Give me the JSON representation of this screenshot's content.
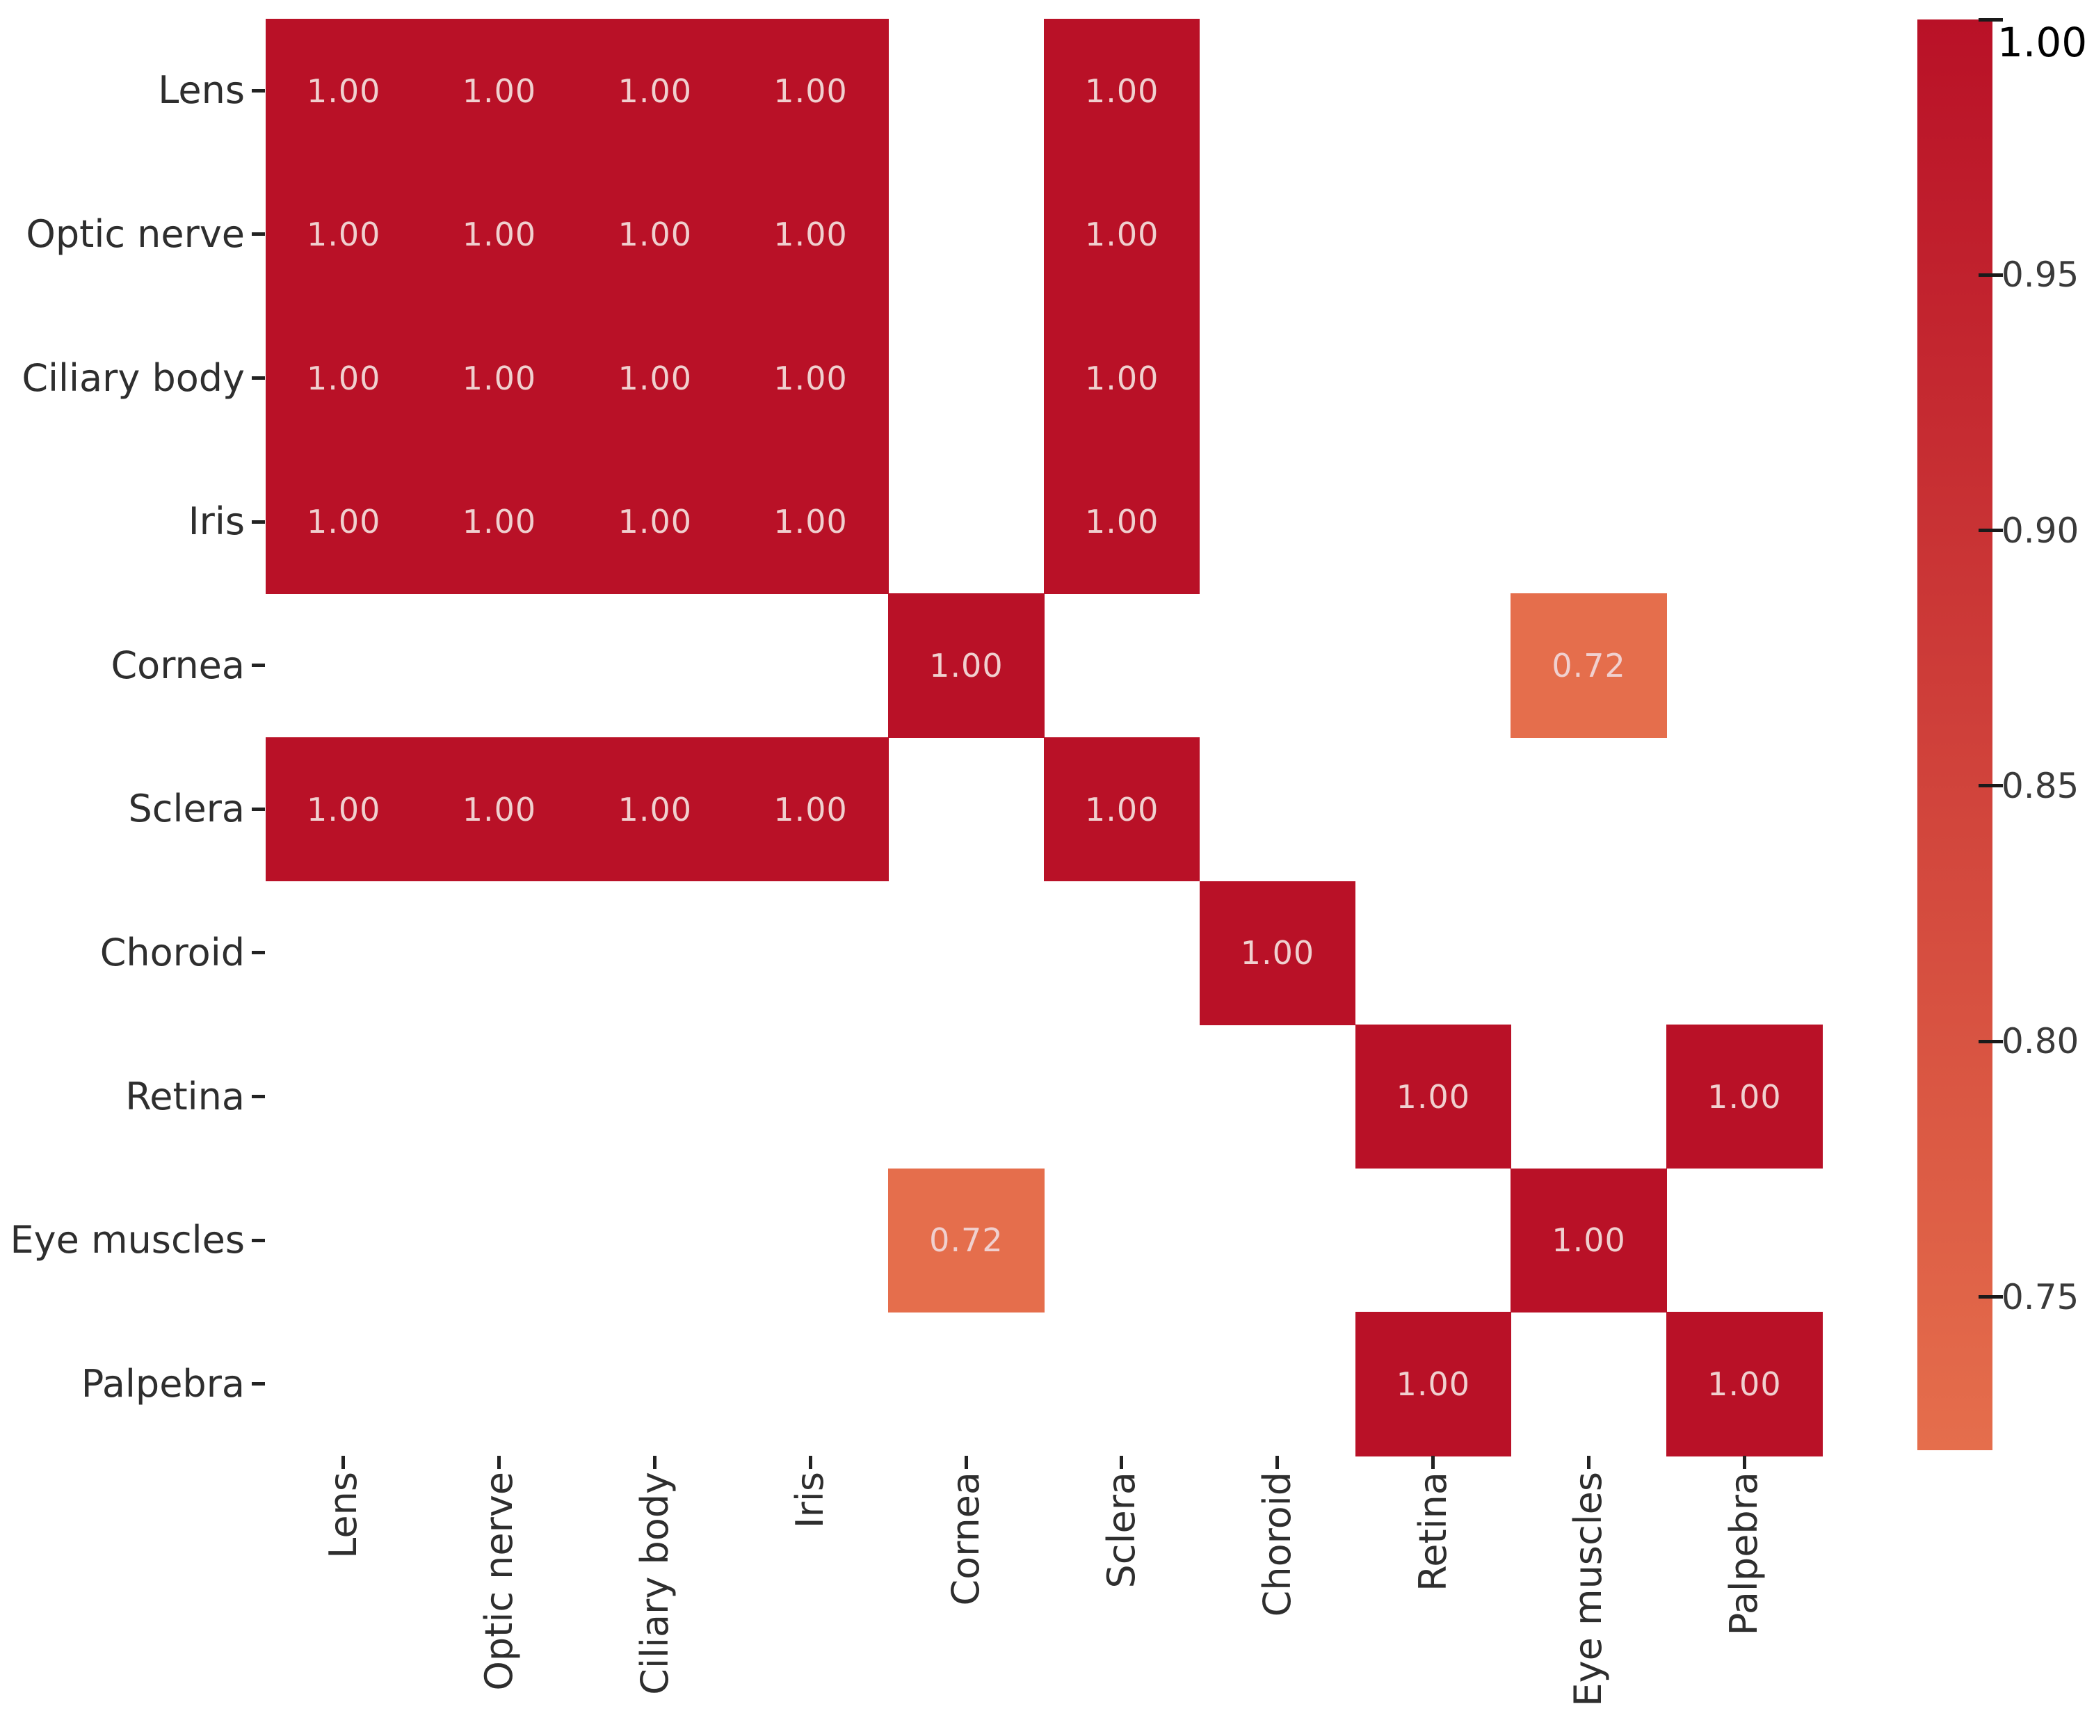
{
  "chart_data": {
    "type": "heatmap",
    "x_labels": [
      "Lens",
      "Optic nerve",
      "Ciliary body",
      "Iris",
      "Cornea",
      "Sclera",
      "Choroid",
      "Retina",
      "Eye muscles",
      "Palpebra"
    ],
    "y_labels": [
      "Lens",
      "Optic nerve",
      "Ciliary body",
      "Iris",
      "Cornea",
      "Sclera",
      "Choroid",
      "Retina",
      "Eye muscles",
      "Palpebra"
    ],
    "matrix": [
      [
        1.0,
        1.0,
        1.0,
        1.0,
        null,
        1.0,
        null,
        null,
        null,
        null
      ],
      [
        1.0,
        1.0,
        1.0,
        1.0,
        null,
        1.0,
        null,
        null,
        null,
        null
      ],
      [
        1.0,
        1.0,
        1.0,
        1.0,
        null,
        1.0,
        null,
        null,
        null,
        null
      ],
      [
        1.0,
        1.0,
        1.0,
        1.0,
        null,
        1.0,
        null,
        null,
        null,
        null
      ],
      [
        null,
        null,
        null,
        null,
        1.0,
        null,
        null,
        null,
        0.72,
        null
      ],
      [
        1.0,
        1.0,
        1.0,
        1.0,
        null,
        1.0,
        null,
        null,
        null,
        null
      ],
      [
        null,
        null,
        null,
        null,
        null,
        null,
        1.0,
        null,
        null,
        null
      ],
      [
        null,
        null,
        null,
        null,
        null,
        null,
        null,
        1.0,
        null,
        1.0
      ],
      [
        null,
        null,
        null,
        null,
        0.72,
        null,
        null,
        null,
        1.0,
        null
      ],
      [
        null,
        null,
        null,
        null,
        null,
        null,
        null,
        1.0,
        null,
        1.0
      ]
    ],
    "annotation_decimals": 2,
    "grid_on": false,
    "colorbar": {
      "position": "right",
      "vmin": 0.72,
      "vmax": 1.0,
      "tick_values": [
        1.0,
        0.95,
        0.9,
        0.85,
        0.8,
        0.75
      ],
      "tick_labels": [
        "1.00",
        "0.95",
        "0.90",
        "0.85",
        "0.80",
        "0.75"
      ]
    },
    "colors": {
      "cell_max": "#b91127",
      "cell_min": "#e56e4c",
      "annotation_text": "#f0d0cf",
      "axis_label": "#2e2e2e",
      "tick_mark": "#222222",
      "colorbar_tick_label": "#3a3a3a",
      "colorbar_top_label": "#000000",
      "background": "#ffffff"
    }
  }
}
